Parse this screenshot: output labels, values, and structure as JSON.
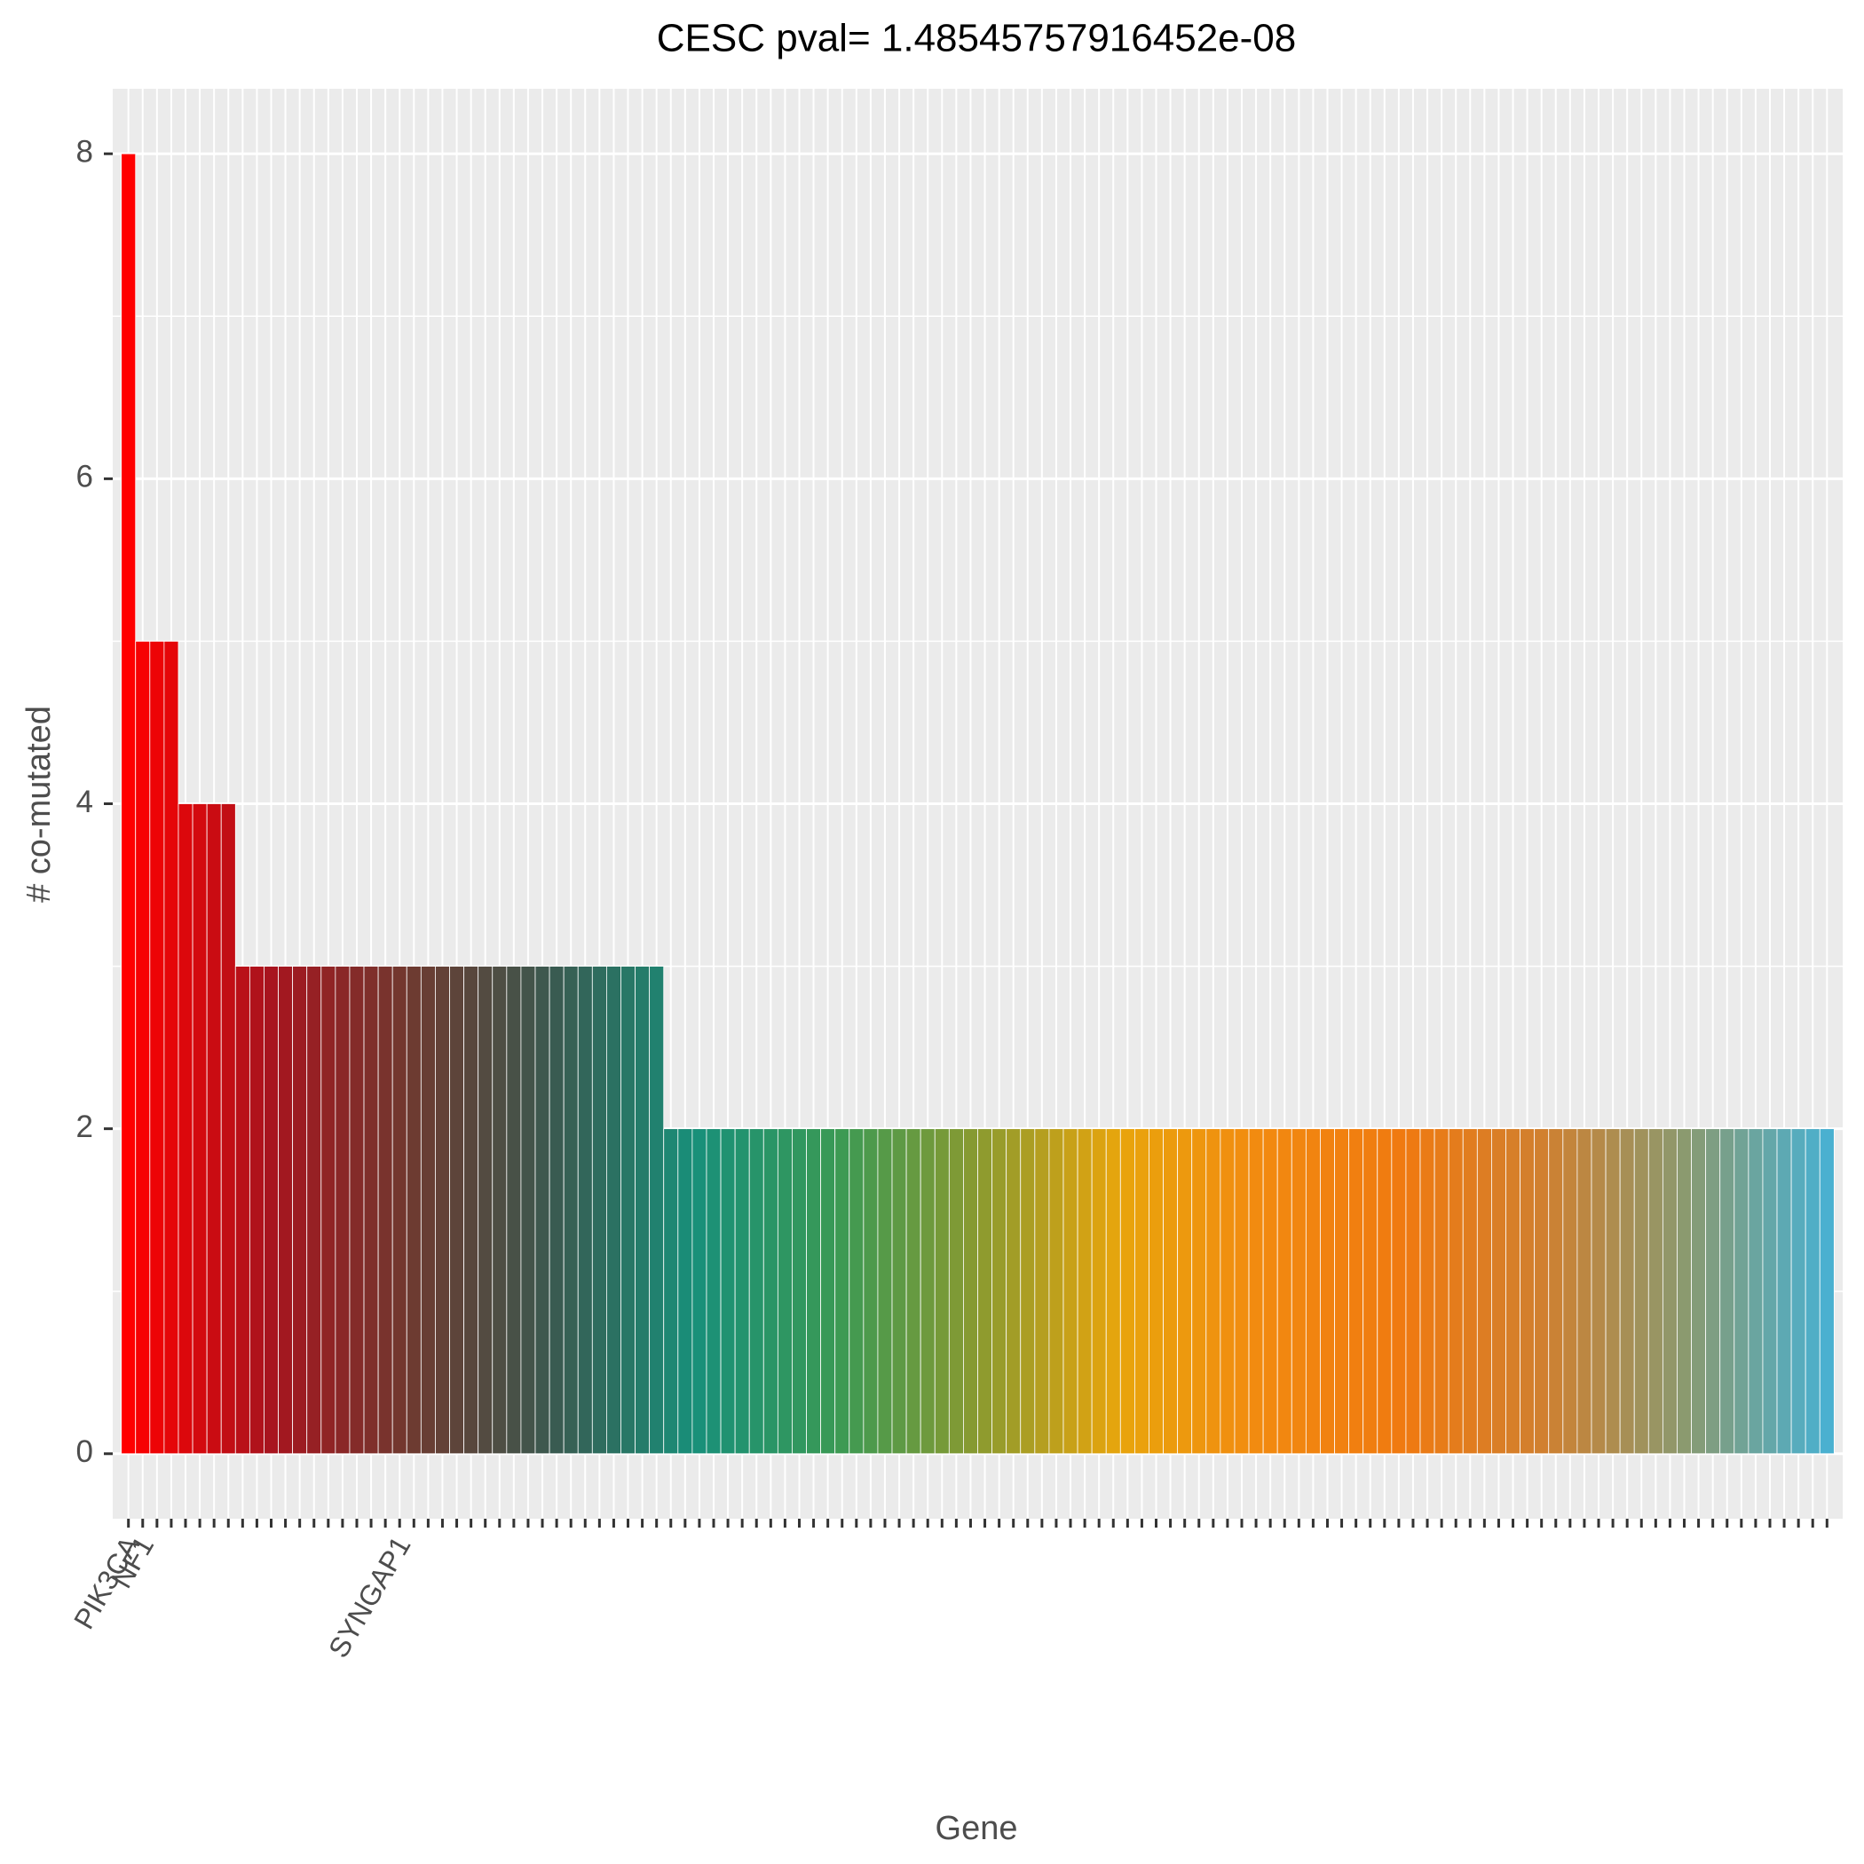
{
  "chart_data": {
    "type": "bar",
    "title": "CESC pval= 1.48545757916452e-08",
    "xlabel": "Gene",
    "ylabel": "# co-mutated",
    "categories": [
      "PIK3CA",
      "NF1",
      null,
      null,
      null,
      null,
      null,
      null,
      null,
      null,
      null,
      null,
      null,
      null,
      null,
      null,
      null,
      null,
      null,
      "SYNGAP1",
      null,
      null,
      null,
      null,
      null,
      null,
      null,
      null,
      null,
      null,
      null,
      null,
      null,
      null,
      null,
      null,
      null,
      null,
      null,
      null,
      null,
      null,
      null,
      null,
      null,
      null,
      null,
      null,
      null,
      null,
      null,
      null,
      null,
      null,
      null,
      null,
      null,
      null,
      null,
      null,
      null,
      null,
      null,
      null,
      null,
      null,
      null,
      null,
      null,
      null,
      null,
      null,
      null,
      null,
      null,
      null,
      null,
      null,
      null,
      null,
      null,
      null,
      null,
      null,
      null,
      null,
      null,
      null,
      null,
      null,
      null,
      null,
      null,
      null,
      null,
      null,
      null,
      null,
      null,
      null,
      null,
      null,
      null,
      null,
      null,
      null,
      null,
      null,
      null,
      null,
      null,
      null,
      null,
      null,
      null,
      null,
      null,
      null,
      null,
      null
    ],
    "values": [
      8,
      5,
      5,
      5,
      4,
      4,
      4,
      4,
      3,
      3,
      3,
      3,
      3,
      3,
      3,
      3,
      3,
      3,
      3,
      3,
      3,
      3,
      3,
      3,
      3,
      3,
      3,
      3,
      3,
      3,
      3,
      3,
      3,
      3,
      3,
      3,
      3,
      3,
      2,
      2,
      2,
      2,
      2,
      2,
      2,
      2,
      2,
      2,
      2,
      2,
      2,
      2,
      2,
      2,
      2,
      2,
      2,
      2,
      2,
      2,
      2,
      2,
      2,
      2,
      2,
      2,
      2,
      2,
      2,
      2,
      2,
      2,
      2,
      2,
      2,
      2,
      2,
      2,
      2,
      2,
      2,
      2,
      2,
      2,
      2,
      2,
      2,
      2,
      2,
      2,
      2,
      2,
      2,
      2,
      2,
      2,
      2,
      2,
      2,
      2,
      2,
      2,
      2,
      2,
      2,
      2,
      2,
      2,
      2,
      2,
      2,
      2,
      2,
      2,
      2,
      2,
      2,
      2,
      2,
      2
    ],
    "colors": [
      "#ff0000",
      "#a8141e",
      "#6e3a30",
      "#3a5a50",
      "#18907a",
      "#3a9a55",
      "#8a9a30",
      "#e8a50c",
      "#f28a10",
      "#f07a10",
      "#d08030",
      "#8a9a70",
      "#4ab0d0"
    ],
    "ylim": [
      -0.4,
      8.4
    ],
    "yticks": [
      0,
      2,
      4,
      6,
      8
    ],
    "grid": true
  }
}
